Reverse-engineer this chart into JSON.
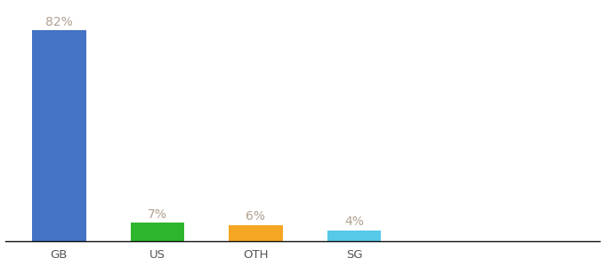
{
  "categories": [
    "GB",
    "US",
    "OTH",
    "SG"
  ],
  "values": [
    82,
    7,
    6,
    4
  ],
  "bar_colors": [
    "#4472c4",
    "#2db52d",
    "#f5a623",
    "#56c8e8"
  ],
  "label_color": "#b0a090",
  "axis_line_color": "#111111",
  "background_color": "#ffffff",
  "ylim": [
    0,
    92
  ],
  "bar_width": 0.55,
  "label_fontsize": 10,
  "tick_fontsize": 9.5,
  "tick_color": "#555555",
  "x_positions": [
    0,
    1,
    2,
    3
  ],
  "xlim": [
    -0.55,
    5.5
  ]
}
